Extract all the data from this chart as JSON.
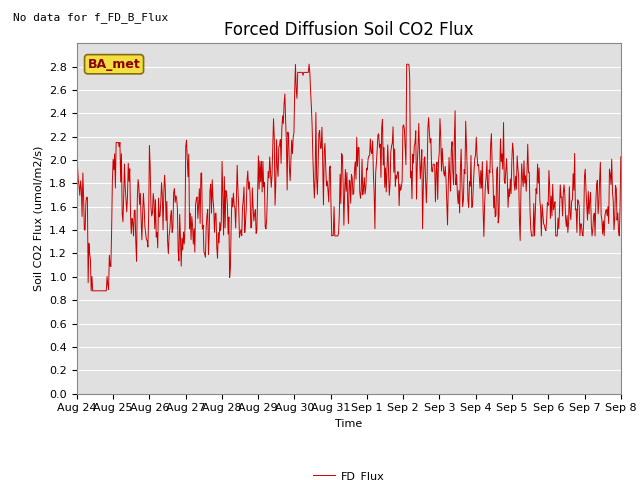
{
  "title": "Forced Diffusion Soil CO2 Flux",
  "no_data_text": "No data for f_FD_B_Flux",
  "ylabel_display": "Soil CO2 Flux (umol/m2/s)",
  "xlabel": "Time",
  "legend_label": "FD_Flux",
  "ba_met_label": "BA_met",
  "ylim": [
    0.0,
    3.0
  ],
  "yticks": [
    0.0,
    0.2,
    0.4,
    0.6,
    0.8,
    1.0,
    1.2,
    1.4,
    1.6,
    1.8,
    2.0,
    2.2,
    2.4,
    2.6,
    2.8
  ],
  "line_color": "#cc0000",
  "background_color": "#e0e0e0",
  "fig_background": "#ffffff",
  "title_fontsize": 12,
  "label_fontsize": 8,
  "tick_fontsize": 8,
  "no_data_fontsize": 8,
  "grid_color": "#ffffff",
  "x_start_day": 0,
  "x_end_day": 15.0,
  "xtick_labels": [
    "Aug 24",
    "Aug 25",
    "Aug 26",
    "Aug 27",
    "Aug 28",
    "Aug 29",
    "Aug 30",
    "Aug 31",
    "Sep 1",
    "Sep 2",
    "Sep 3",
    "Sep 4",
    "Sep 5",
    "Sep 6",
    "Sep 7",
    "Sep 8"
  ],
  "xtick_positions": [
    0,
    1,
    2,
    3,
    4,
    5,
    6,
    7,
    8,
    9,
    10,
    11,
    12,
    13,
    14,
    15
  ]
}
